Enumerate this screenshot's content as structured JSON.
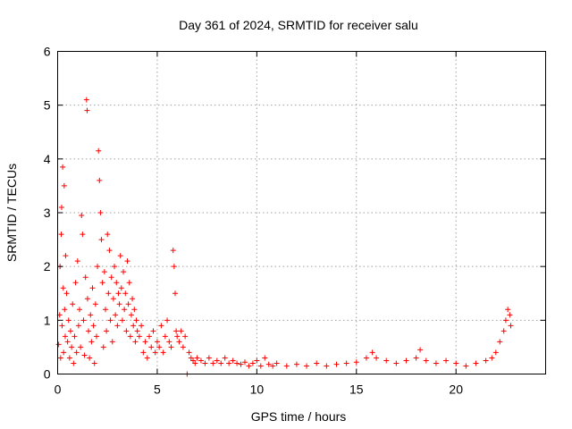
{
  "chart_data": {
    "type": "scatter",
    "title": "Day 361 of 2024, SRMTID for receiver salu",
    "xlabel": "GPS time / hours",
    "ylabel": "SRMTID / TECUs",
    "xlim": [
      0,
      24.5
    ],
    "ylim": [
      0,
      6
    ],
    "xticks": [
      0,
      5,
      10,
      15,
      20
    ],
    "xtick_labels": [
      "0",
      "5",
      "10",
      "15",
      "20"
    ],
    "yticks": [
      0,
      1,
      2,
      3,
      4,
      5,
      6
    ],
    "ytick_labels": [
      "0",
      "1",
      "2",
      "3",
      "4",
      "5",
      "6"
    ],
    "grid": true,
    "marker": "+",
    "color": "#ff0000",
    "series": [
      {
        "name": "SRMTID",
        "points": [
          [
            0.05,
            0.55
          ],
          [
            0.1,
            1.1
          ],
          [
            0.12,
            2.0
          ],
          [
            0.15,
            0.3
          ],
          [
            0.18,
            2.6
          ],
          [
            0.2,
            3.1
          ],
          [
            0.22,
            0.9
          ],
          [
            0.25,
            3.85
          ],
          [
            0.28,
            1.6
          ],
          [
            0.3,
            0.4
          ],
          [
            0.33,
            3.5
          ],
          [
            0.35,
            1.2
          ],
          [
            0.38,
            0.7
          ],
          [
            0.4,
            2.2
          ],
          [
            0.45,
            1.5
          ],
          [
            0.5,
            0.6
          ],
          [
            0.55,
            1.0
          ],
          [
            0.6,
            0.3
          ],
          [
            0.65,
            0.8
          ],
          [
            0.7,
            0.5
          ],
          [
            0.75,
            1.3
          ],
          [
            0.8,
            0.2
          ],
          [
            0.85,
            0.7
          ],
          [
            0.9,
            1.7
          ],
          [
            0.95,
            0.4
          ],
          [
            1.0,
            2.1
          ],
          [
            1.05,
            0.9
          ],
          [
            1.1,
            1.2
          ],
          [
            1.15,
            0.5
          ],
          [
            1.2,
            2.95
          ],
          [
            1.25,
            2.6
          ],
          [
            1.3,
            1.0
          ],
          [
            1.35,
            0.35
          ],
          [
            1.4,
            1.8
          ],
          [
            1.45,
            5.1
          ],
          [
            1.48,
            4.9
          ],
          [
            1.5,
            1.4
          ],
          [
            1.55,
            0.8
          ],
          [
            1.6,
            0.3
          ],
          [
            1.65,
            1.1
          ],
          [
            1.7,
            0.6
          ],
          [
            1.75,
            1.6
          ],
          [
            1.8,
            0.9
          ],
          [
            1.85,
            0.2
          ],
          [
            1.9,
            1.3
          ],
          [
            1.95,
            0.7
          ],
          [
            2.0,
            2.0
          ],
          [
            2.05,
            4.15
          ],
          [
            2.1,
            3.6
          ],
          [
            2.15,
            3.0
          ],
          [
            2.2,
            2.5
          ],
          [
            2.25,
            1.7
          ],
          [
            2.3,
            0.5
          ],
          [
            2.35,
            1.9
          ],
          [
            2.4,
            1.2
          ],
          [
            2.45,
            0.8
          ],
          [
            2.5,
            2.6
          ],
          [
            2.55,
            1.5
          ],
          [
            2.6,
            2.3
          ],
          [
            2.65,
            1.0
          ],
          [
            2.7,
            1.8
          ],
          [
            2.75,
            0.6
          ],
          [
            2.8,
            1.4
          ],
          [
            2.85,
            2.0
          ],
          [
            2.9,
            1.1
          ],
          [
            2.95,
            1.7
          ],
          [
            3.0,
            0.9
          ],
          [
            3.05,
            1.5
          ],
          [
            3.1,
            1.3
          ],
          [
            3.15,
            2.2
          ],
          [
            3.2,
            1.6
          ],
          [
            3.25,
            1.0
          ],
          [
            3.3,
            1.9
          ],
          [
            3.35,
            1.2
          ],
          [
            3.4,
            1.5
          ],
          [
            3.45,
            0.8
          ],
          [
            3.5,
            2.1
          ],
          [
            3.55,
            1.3
          ],
          [
            3.6,
            1.7
          ],
          [
            3.65,
            0.7
          ],
          [
            3.7,
            1.1
          ],
          [
            3.75,
            1.4
          ],
          [
            3.8,
            0.9
          ],
          [
            3.85,
            1.2
          ],
          [
            3.9,
            0.6
          ],
          [
            3.95,
            1.0
          ],
          [
            4.0,
            0.8
          ],
          [
            4.1,
            0.7
          ],
          [
            4.2,
            0.9
          ],
          [
            4.3,
            0.4
          ],
          [
            4.4,
            0.6
          ],
          [
            4.5,
            0.3
          ],
          [
            4.6,
            0.7
          ],
          [
            4.7,
            0.5
          ],
          [
            4.8,
            0.8
          ],
          [
            4.9,
            0.4
          ],
          [
            5.0,
            0.6
          ],
          [
            5.1,
            0.5
          ],
          [
            5.2,
            0.9
          ],
          [
            5.3,
            0.4
          ],
          [
            5.4,
            0.7
          ],
          [
            5.5,
            1.0
          ],
          [
            5.6,
            0.6
          ],
          [
            5.7,
            0.5
          ],
          [
            5.8,
            2.3
          ],
          [
            5.85,
            2.0
          ],
          [
            5.9,
            1.5
          ],
          [
            5.95,
            0.8
          ],
          [
            6.0,
            0.7
          ],
          [
            6.1,
            0.6
          ],
          [
            6.2,
            0.8
          ],
          [
            6.3,
            0.5
          ],
          [
            6.4,
            0.7
          ],
          [
            6.5,
            0.0
          ],
          [
            6.6,
            0.4
          ],
          [
            6.7,
            0.3
          ],
          [
            6.8,
            0.25
          ],
          [
            6.9,
            0.2
          ],
          [
            7.0,
            0.3
          ],
          [
            7.2,
            0.25
          ],
          [
            7.4,
            0.2
          ],
          [
            7.6,
            0.3
          ],
          [
            7.8,
            0.2
          ],
          [
            8.0,
            0.25
          ],
          [
            8.2,
            0.2
          ],
          [
            8.4,
            0.3
          ],
          [
            8.6,
            0.2
          ],
          [
            8.8,
            0.25
          ],
          [
            9.0,
            0.2
          ],
          [
            9.2,
            0.18
          ],
          [
            9.4,
            0.22
          ],
          [
            9.6,
            0.15
          ],
          [
            9.8,
            0.2
          ],
          [
            10.0,
            0.25
          ],
          [
            10.2,
            0.15
          ],
          [
            10.4,
            0.3
          ],
          [
            10.6,
            0.18
          ],
          [
            10.8,
            0.15
          ],
          [
            11.0,
            0.2
          ],
          [
            11.5,
            0.15
          ],
          [
            12.0,
            0.18
          ],
          [
            12.5,
            0.15
          ],
          [
            13.0,
            0.2
          ],
          [
            13.5,
            0.15
          ],
          [
            14.0,
            0.18
          ],
          [
            14.5,
            0.2
          ],
          [
            15.0,
            0.22
          ],
          [
            15.5,
            0.3
          ],
          [
            15.8,
            0.4
          ],
          [
            16.0,
            0.3
          ],
          [
            16.5,
            0.25
          ],
          [
            17.0,
            0.2
          ],
          [
            17.5,
            0.25
          ],
          [
            18.0,
            0.3
          ],
          [
            18.2,
            0.45
          ],
          [
            18.5,
            0.25
          ],
          [
            19.0,
            0.2
          ],
          [
            19.5,
            0.25
          ],
          [
            20.0,
            0.2
          ],
          [
            20.5,
            0.15
          ],
          [
            21.0,
            0.2
          ],
          [
            21.5,
            0.25
          ],
          [
            21.8,
            0.3
          ],
          [
            22.0,
            0.4
          ],
          [
            22.2,
            0.6
          ],
          [
            22.4,
            0.8
          ],
          [
            22.5,
            1.0
          ],
          [
            22.6,
            1.2
          ],
          [
            22.7,
            1.1
          ],
          [
            22.75,
            0.9
          ]
        ]
      }
    ]
  }
}
